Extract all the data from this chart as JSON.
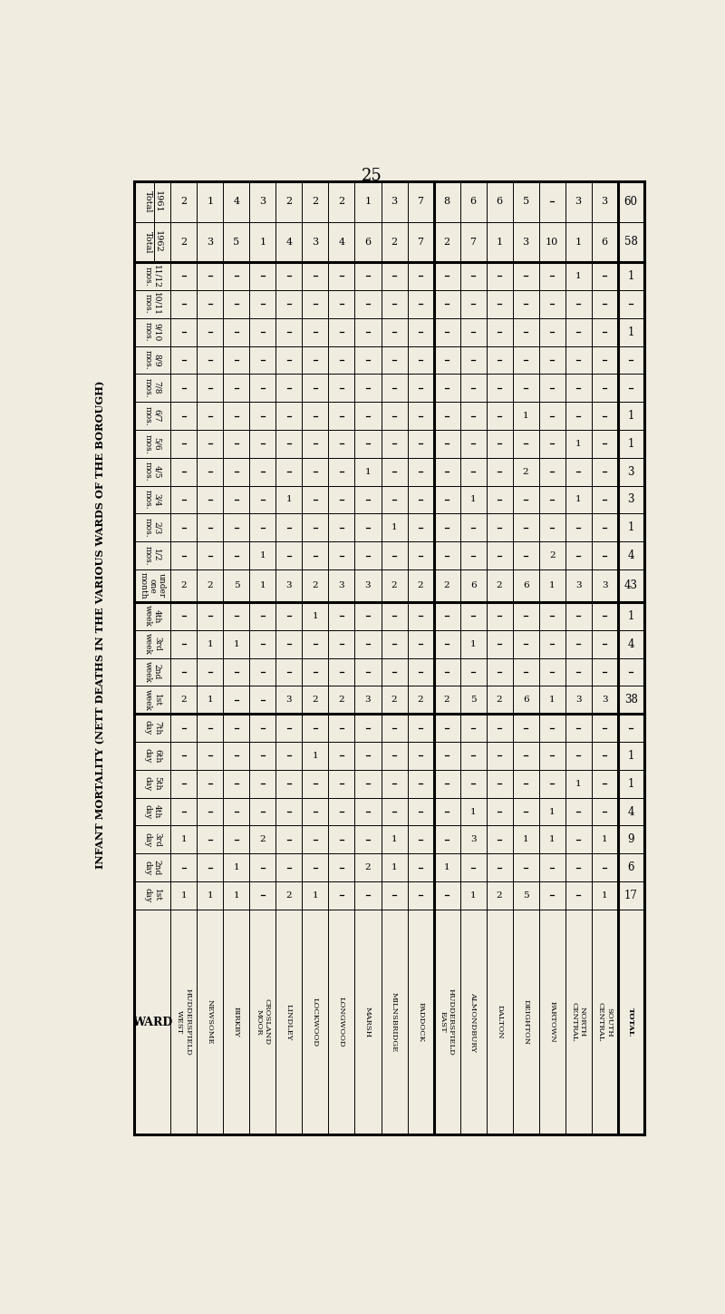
{
  "page_number": "25",
  "title": "INFANT MORTALITY (NETT DEATHS IN THE VARIOUS WARDS OF THE BOROUGH)",
  "bg_color": "#f0ece0",
  "wards": [
    "HUDDERSFIELD\nWEST",
    "NEWSOME",
    "BIRKBY",
    "CROSLAND\nMOOR",
    "LINDLEY",
    "LOCKWOOD",
    "LONGWOOD",
    "MARSH",
    "MILNSBRIDGE",
    "PADDOCK",
    "HUDDERSFIELD\nEAST",
    "ALMONDBURY",
    "DALTON",
    "DEIGHTON",
    "FARTOWN",
    "NORTH\nCENTRAL",
    "SOUTH\nCENTRAL",
    "TOTAL"
  ],
  "row_labels": [
    "Total\n1961",
    "Total\n1962",
    "11/12\nmos.",
    "10/11\nmos.",
    "9/10\nmos.",
    "8/9\nmos.",
    "7/8\nmos.",
    "6/7\nmos.",
    "5/6\nmos.",
    "4/5\nmos.",
    "3/4\nmos.",
    "2/3\nmos.",
    "1/2\nmos.",
    "under\none\nmonth",
    "4th\nweek",
    "3rd\nweek",
    "2nd\nweek",
    "1st\nweek",
    "7th\nday",
    "6th\nday",
    "5th\nday",
    "4th\nday",
    "3rd\nday",
    "2nd\nday",
    "1st\nday",
    "WARD"
  ],
  "data_by_row": {
    "Total\n1961": [
      2,
      1,
      4,
      3,
      2,
      2,
      2,
      1,
      3,
      7,
      8,
      6,
      6,
      5,
      0,
      3,
      3,
      60
    ],
    "Total\n1962": [
      2,
      3,
      5,
      1,
      4,
      3,
      4,
      6,
      2,
      7,
      2,
      7,
      1,
      3,
      10,
      1,
      6,
      58
    ],
    "11/12\nmos.": [
      0,
      0,
      0,
      0,
      0,
      0,
      0,
      0,
      0,
      0,
      0,
      0,
      0,
      0,
      0,
      1,
      0,
      1
    ],
    "10/11\nmos.": [
      0,
      0,
      0,
      0,
      0,
      0,
      0,
      0,
      0,
      0,
      0,
      0,
      0,
      0,
      0,
      0,
      0,
      0
    ],
    "9/10\nmos.": [
      0,
      0,
      0,
      0,
      0,
      0,
      0,
      0,
      0,
      0,
      0,
      0,
      0,
      0,
      0,
      0,
      0,
      1
    ],
    "8/9\nmos.": [
      0,
      0,
      0,
      0,
      0,
      0,
      0,
      0,
      0,
      0,
      0,
      0,
      0,
      0,
      0,
      0,
      0,
      0
    ],
    "7/8\nmos.": [
      0,
      0,
      0,
      0,
      0,
      0,
      0,
      0,
      0,
      0,
      0,
      0,
      0,
      0,
      0,
      0,
      0,
      0
    ],
    "6/7\nmos.": [
      0,
      0,
      0,
      0,
      0,
      0,
      0,
      0,
      0,
      0,
      0,
      0,
      0,
      1,
      0,
      0,
      0,
      1
    ],
    "5/6\nmos.": [
      0,
      0,
      0,
      0,
      0,
      0,
      0,
      0,
      0,
      0,
      0,
      0,
      0,
      0,
      0,
      1,
      0,
      1
    ],
    "4/5\nmos.": [
      0,
      0,
      0,
      0,
      0,
      0,
      0,
      1,
      0,
      0,
      0,
      0,
      0,
      2,
      0,
      0,
      0,
      3
    ],
    "3/4\nmos.": [
      0,
      0,
      0,
      0,
      1,
      0,
      0,
      0,
      0,
      0,
      0,
      1,
      0,
      0,
      0,
      1,
      0,
      3
    ],
    "2/3\nmos.": [
      0,
      0,
      0,
      0,
      0,
      0,
      0,
      0,
      1,
      0,
      0,
      0,
      0,
      0,
      0,
      0,
      0,
      1
    ],
    "1/2\nmos.": [
      0,
      0,
      0,
      1,
      0,
      0,
      0,
      0,
      0,
      0,
      0,
      0,
      0,
      0,
      2,
      0,
      0,
      4
    ],
    "under\none\nmonth": [
      2,
      2,
      5,
      1,
      3,
      2,
      3,
      3,
      2,
      2,
      2,
      6,
      2,
      6,
      1,
      3,
      3,
      43
    ],
    "4th\nweek": [
      0,
      0,
      0,
      0,
      0,
      1,
      0,
      0,
      0,
      0,
      0,
      0,
      0,
      0,
      0,
      0,
      0,
      1
    ],
    "3rd\nweek": [
      0,
      1,
      1,
      0,
      0,
      0,
      0,
      0,
      0,
      0,
      0,
      1,
      0,
      0,
      0,
      0,
      0,
      4
    ],
    "2nd\nweek": [
      0,
      0,
      0,
      0,
      0,
      0,
      0,
      0,
      0,
      0,
      0,
      0,
      0,
      0,
      0,
      0,
      0,
      0
    ],
    "1st\nweek": [
      2,
      1,
      0,
      0,
      3,
      2,
      2,
      3,
      2,
      2,
      2,
      5,
      2,
      6,
      1,
      3,
      3,
      38
    ],
    "7th\nday": [
      0,
      0,
      0,
      0,
      0,
      0,
      0,
      0,
      0,
      0,
      0,
      0,
      0,
      0,
      0,
      0,
      0,
      0
    ],
    "6th\nday": [
      0,
      0,
      0,
      0,
      0,
      1,
      0,
      0,
      0,
      0,
      0,
      0,
      0,
      0,
      0,
      0,
      0,
      1
    ],
    "5th\nday": [
      0,
      0,
      0,
      0,
      0,
      0,
      0,
      0,
      0,
      0,
      0,
      0,
      0,
      0,
      0,
      1,
      0,
      1
    ],
    "4th\nday": [
      0,
      0,
      0,
      0,
      0,
      0,
      0,
      0,
      0,
      0,
      0,
      1,
      0,
      0,
      1,
      0,
      0,
      4
    ],
    "3rd\nday": [
      1,
      0,
      0,
      2,
      0,
      0,
      0,
      0,
      1,
      0,
      0,
      3,
      0,
      1,
      1,
      0,
      1,
      9
    ],
    "2nd\nday": [
      0,
      0,
      1,
      0,
      0,
      0,
      0,
      2,
      1,
      0,
      1,
      0,
      0,
      0,
      0,
      0,
      0,
      6
    ],
    "1st\nday": [
      1,
      1,
      1,
      0,
      2,
      1,
      0,
      0,
      0,
      0,
      0,
      1,
      2,
      5,
      0,
      0,
      1,
      17
    ]
  },
  "separator_after_ward_idx": 9,
  "thick_row_indices": [
    0,
    2,
    13,
    17,
    25
  ],
  "thick_col_indices": [
    0,
    10,
    17
  ]
}
